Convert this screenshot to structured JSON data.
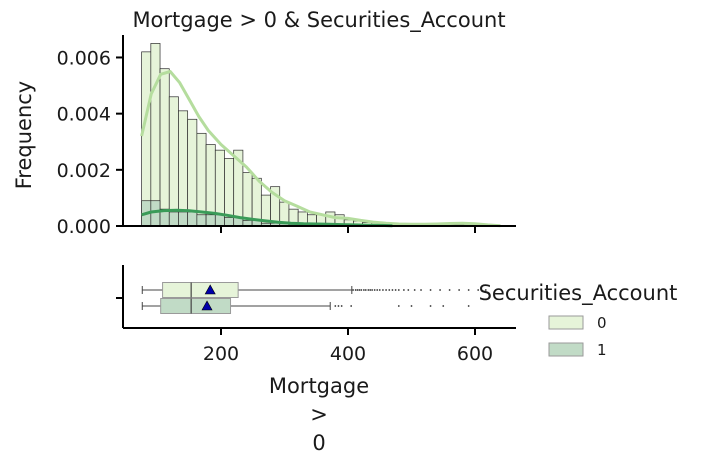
{
  "chart_data": [
    {
      "type": "bar",
      "subtype": "histogram-with-kde",
      "title": "Mortgage > 0 & Securities_Account",
      "ylabel": "Frequency",
      "xlim": [
        50,
        660
      ],
      "ylim": [
        0,
        0.0068
      ],
      "yticks": [
        "0.000",
        "0.002",
        "0.004",
        "0.006"
      ],
      "xticks": [
        200,
        400,
        600
      ],
      "bin_edges": [
        75,
        89.5,
        104,
        118.5,
        133,
        147.5,
        162,
        176.5,
        191,
        205.5,
        220,
        234.5,
        249,
        263.5,
        278,
        292.5,
        307,
        321.5,
        336,
        350.5,
        365,
        379.5,
        394,
        408.5,
        423,
        437.5,
        452,
        466.5,
        481,
        495.5,
        510,
        524.5,
        539,
        553.5,
        568,
        582.5,
        597,
        611.5,
        626,
        640.5
      ],
      "series": [
        {
          "name": "0",
          "color": "#e6f4d9",
          "edge_color": "#2b2b2b",
          "values": [
            0.0062,
            0.0065,
            0.0056,
            0.0046,
            0.0041,
            0.0038,
            0.0033,
            0.0029,
            0.0027,
            0.0024,
            0.0027,
            0.0019,
            0.0017,
            0.0011,
            0.0014,
            0.00085,
            0.0006,
            0.0005,
            0.0004,
            0.0004,
            0.0005,
            0.0004,
            0.00022,
            0.00018,
            0.00012,
            0.00012,
            8e-05,
            8e-05,
            8e-05,
            5e-05,
            4e-05,
            4e-05,
            4e-05,
            4e-05,
            4e-05,
            3e-05,
            3e-05,
            3e-05,
            2e-05
          ],
          "kde_color": "#b5dd9e",
          "kde": [
            [
              75,
              0.0032
            ],
            [
              90,
              0.0047
            ],
            [
              105,
              0.0054
            ],
            [
              120,
              0.0055
            ],
            [
              135,
              0.0051
            ],
            [
              150,
              0.0045
            ],
            [
              165,
              0.0039
            ],
            [
              180,
              0.0034
            ],
            [
              200,
              0.0029
            ],
            [
              220,
              0.0025
            ],
            [
              240,
              0.0021
            ],
            [
              260,
              0.0016
            ],
            [
              280,
              0.0012
            ],
            [
              300,
              0.0009
            ],
            [
              320,
              0.0007
            ],
            [
              340,
              0.0005
            ],
            [
              360,
              0.0004
            ],
            [
              380,
              0.0003
            ],
            [
              400,
              0.00027
            ],
            [
              420,
              0.0002
            ],
            [
              440,
              0.00014
            ],
            [
              460,
              0.0001
            ],
            [
              480,
              7e-05
            ],
            [
              500,
              6e-05
            ],
            [
              520,
              6e-05
            ],
            [
              540,
              7e-05
            ],
            [
              560,
              9e-05
            ],
            [
              580,
              0.0001
            ],
            [
              600,
              8e-05
            ],
            [
              620,
              4e-05
            ],
            [
              640,
              1e-05
            ]
          ]
        },
        {
          "name": "1",
          "color": "#c1dbc6",
          "edge_color": "#2b2b2b",
          "values": [
            0.0009,
            0.0009,
            0.0006,
            0.0005,
            0.0005,
            0.0005,
            0.0004,
            0.0004,
            0.0004,
            0.0003,
            0.0003,
            0.0002,
            0.0002,
            0.0001,
            0.0001,
            8e-05,
            6e-05,
            5e-05,
            4e-05,
            4e-05,
            5e-05,
            5e-05,
            2e-05,
            2e-05,
            1e-05,
            1e-05,
            0,
            0,
            0,
            0,
            0,
            0,
            0,
            0,
            0,
            0,
            0,
            0,
            0
          ],
          "kde_color": "#3a9b58",
          "kde": [
            [
              75,
              0.0004
            ],
            [
              90,
              0.0005
            ],
            [
              110,
              0.00055
            ],
            [
              130,
              0.00056
            ],
            [
              150,
              0.00054
            ],
            [
              170,
              0.0005
            ],
            [
              190,
              0.00045
            ],
            [
              210,
              0.00038
            ],
            [
              230,
              0.0003
            ],
            [
              250,
              0.00024
            ],
            [
              270,
              0.00018
            ],
            [
              290,
              0.00013
            ],
            [
              310,
              0.0001
            ],
            [
              330,
              8e-05
            ],
            [
              350,
              7e-05
            ],
            [
              370,
              6e-05
            ],
            [
              390,
              5e-05
            ],
            [
              410,
              4e-05
            ],
            [
              430,
              3e-05
            ],
            [
              450,
              2e-05
            ],
            [
              470,
              1e-05
            ]
          ]
        }
      ]
    },
    {
      "type": "box",
      "xlabel": "Mortgage\n>\n0",
      "xticks": [
        200,
        400,
        600
      ],
      "xlim": [
        50,
        660
      ],
      "legend": {
        "title": "Securities_Account",
        "position": "right",
        "entries": [
          {
            "label": "0",
            "color": "#e6f4d9"
          },
          {
            "label": "1",
            "color": "#c1dbc6"
          }
        ]
      },
      "series": [
        {
          "name": "0",
          "color": "#e6f4d9",
          "min": 76,
          "q1": 108,
          "median": 153,
          "q3": 227,
          "whisker_high": 406,
          "mean": 183,
          "outliers": [
            408,
            412,
            415,
            418,
            421,
            425,
            428,
            432,
            435,
            438,
            442,
            446,
            450,
            455,
            460,
            465,
            470,
            475,
            480,
            488,
            495,
            505,
            515,
            530,
            545,
            560,
            575,
            590,
            605,
            617
          ]
        },
        {
          "name": "1",
          "color": "#c1dbc6",
          "min": 76,
          "q1": 105,
          "median": 153,
          "q3": 215,
          "whisker_high": 372,
          "mean": 178,
          "outliers": [
            380,
            385,
            390,
            405,
            480,
            500,
            530,
            550,
            590
          ]
        }
      ]
    }
  ]
}
